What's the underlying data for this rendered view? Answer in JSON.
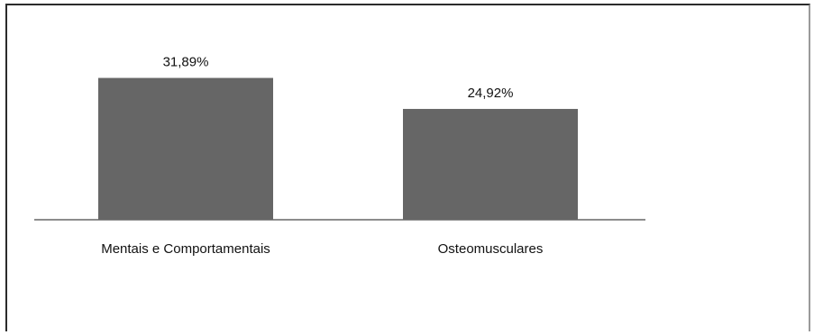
{
  "chart_data": {
    "type": "bar",
    "categories": [
      "Mentais e Comportamentais",
      "Osteomusculares"
    ],
    "values": [
      31.89,
      24.92
    ],
    "data_labels": [
      "31,89%",
      "24,92%"
    ],
    "title": "",
    "xlabel": "",
    "ylabel": "",
    "ylim": [
      0,
      32
    ],
    "grid": false,
    "legend": "none",
    "colors": {
      "bar": "#666666",
      "axis": "#8c8c8c",
      "text": "#111111"
    }
  }
}
